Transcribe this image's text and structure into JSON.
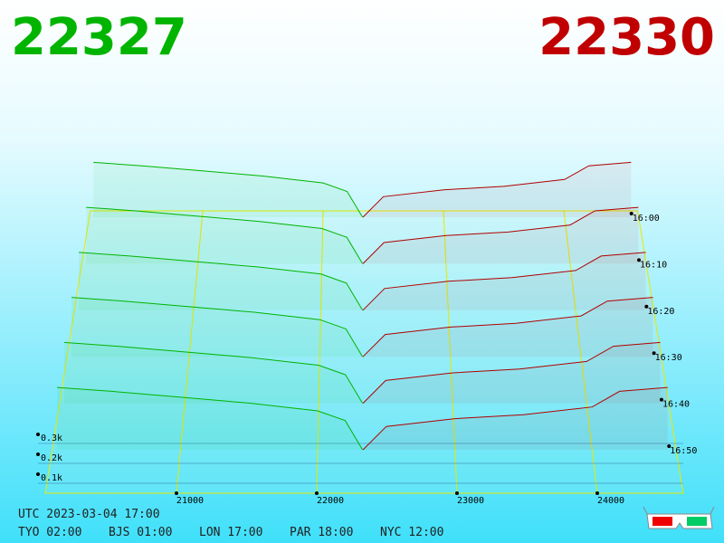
{
  "chart_data": {
    "type": "depth3d",
    "bid_label": "22327",
    "ask_label": "22330",
    "bid_color": "#00b400",
    "ask_color": "#c00000",
    "xlim": [
      20065,
      24613
    ],
    "xticks": [
      21000,
      22000,
      23000,
      24000
    ],
    "ylim": [
      0,
      0.35
    ],
    "yticks": [
      {
        "value": 0.1,
        "label": "0.1k"
      },
      {
        "value": 0.2,
        "label": "0.2k"
      },
      {
        "value": 0.3,
        "label": "0.3k"
      }
    ],
    "times": [
      "16:00",
      "16:10",
      "16:20",
      "16:30",
      "16:40",
      "16:50"
    ],
    "series": [
      {
        "color": "#00b400",
        "x": [
          20100,
          20500,
          21000,
          21500,
          22000,
          22200,
          22327
        ],
        "values": [
          0.32,
          0.3,
          0.27,
          0.24,
          0.2,
          0.15,
          0
        ]
      },
      {
        "color": "#b00000",
        "x": [
          22330,
          22500,
          23000,
          23500,
          24000,
          24200,
          24550
        ],
        "values": [
          0,
          0.12,
          0.16,
          0.18,
          0.22,
          0.3,
          0.32
        ]
      }
    ]
  },
  "footer": {
    "utc": "UTC 2023-03-04 17:00",
    "zones": [
      "TYO 02:00",
      "BJS 01:00",
      "LON 17:00",
      "PAR 18:00",
      "NYC 12:00"
    ]
  }
}
